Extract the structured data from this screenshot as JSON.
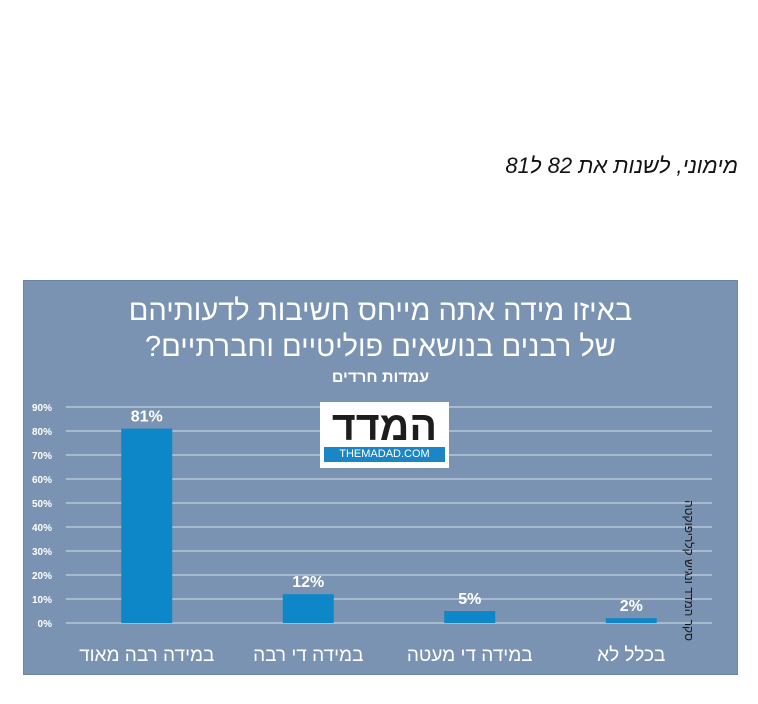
{
  "caption": "מימוני, לשנות את 82 ל81",
  "chart": {
    "title_line1": "באיזו מידה אתה מייחס חשיבות לדעותיהם",
    "title_line2": "של רבנים בנושאים פוליטיים וחברתיים?",
    "subtitle": "עמדות חרדים",
    "logo_text": "המדד",
    "logo_url": "THEMADAD.COM",
    "source_note": "סקר המדד ונגיש קלריפוקטה"
  },
  "colors": {
    "panel": "#7a93b2",
    "bar": "#0d87c8",
    "text": "#ffffff",
    "grid": "#d7e0ea"
  },
  "chart_data": {
    "type": "bar",
    "title": "באיזו מידה אתה מייחס חשיבות לדעותיהם של רבנים בנושאים פוליטיים וחברתיים?",
    "subtitle": "עמדות חרדים",
    "categories": [
      "במידה רבה מאוד",
      "במידה די רבה",
      "במידה די מעטה",
      "בכלל לא"
    ],
    "values": [
      81,
      12,
      5,
      2
    ],
    "value_labels": [
      "81%",
      "12%",
      "5%",
      "2%"
    ],
    "ylim": [
      0,
      90
    ],
    "yticks": [
      "0%",
      "10%",
      "20%",
      "30%",
      "40%",
      "50%",
      "60%",
      "70%",
      "80%",
      "90%"
    ],
    "grid": true,
    "legend": "none"
  }
}
